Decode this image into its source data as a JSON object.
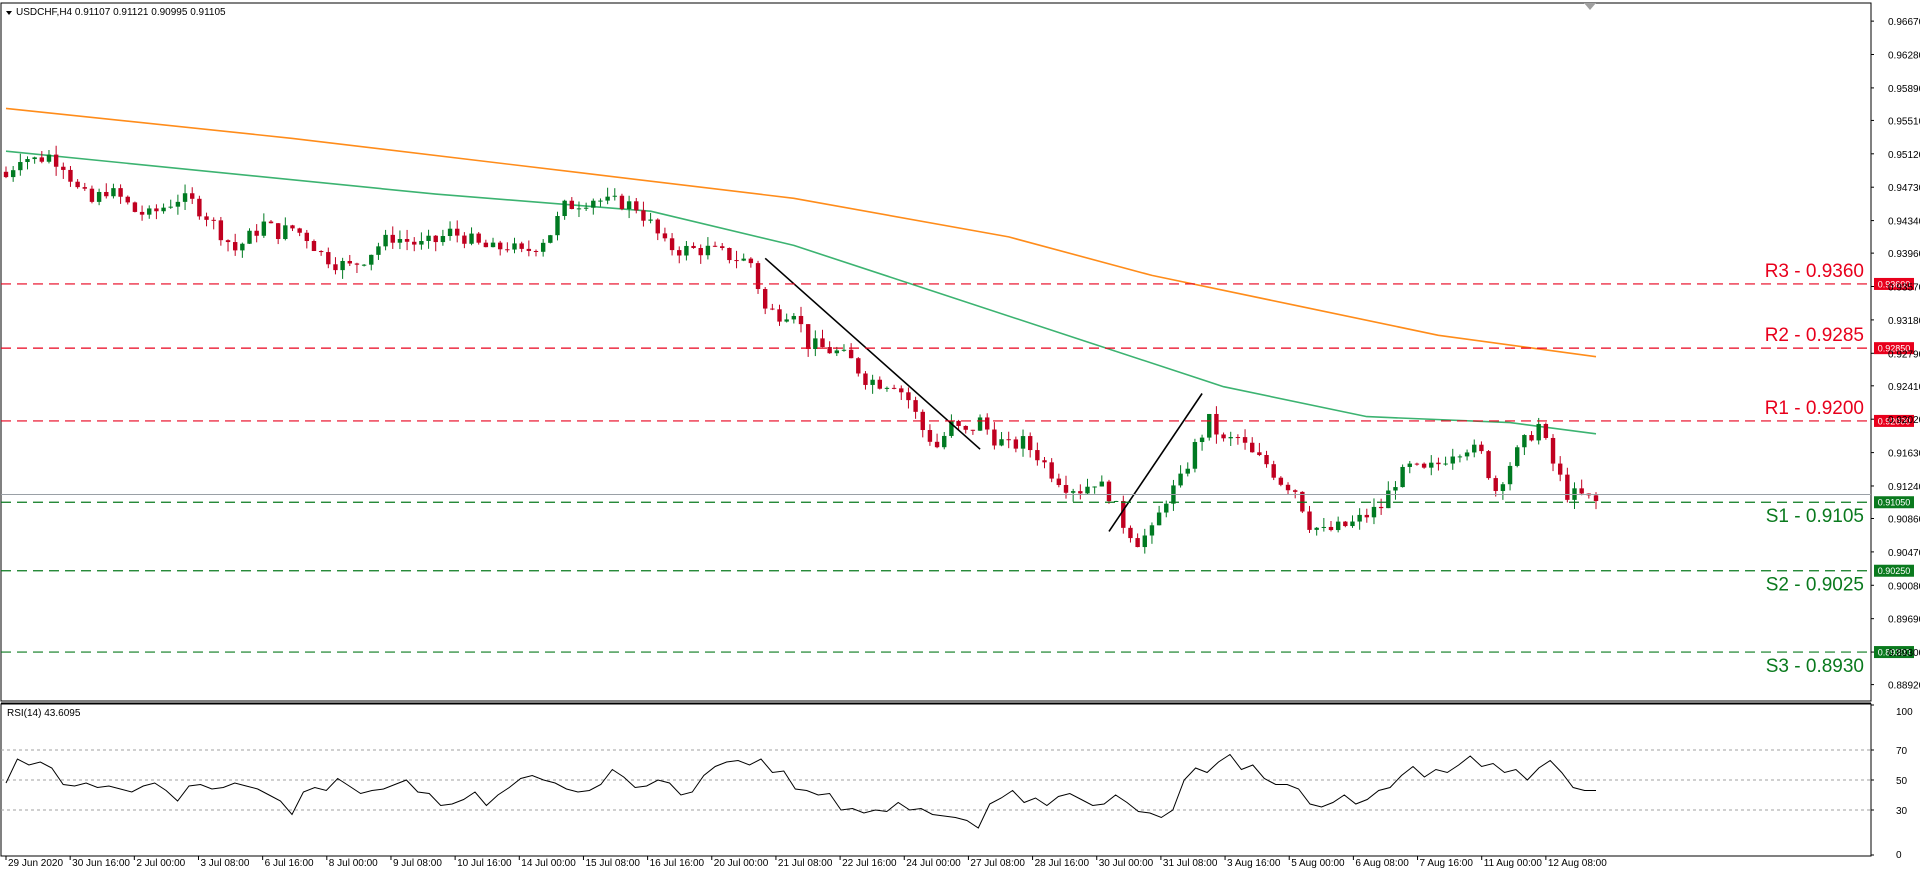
{
  "header": {
    "symbol_info": "USDCHF,H4  0.91107 0.91121 0.90995 0.91105",
    "rsi_info": "RSI(14) 43.6095"
  },
  "colors": {
    "background": "#ffffff",
    "bull_candle": "#007a22",
    "bear_candle": "#c00020",
    "ma_fast": "#3cb371",
    "ma_slow": "#ff8c1a",
    "resistance": "#e8001c",
    "support": "#0a7a1e",
    "trendline": "#000000",
    "rsi_line": "#000000",
    "grid_dash": "#a0a0a0"
  },
  "chart_data": [
    {
      "type": "candlestick",
      "title": "USDCHF,H4",
      "ohlc_readout": {
        "open": 0.91107,
        "high": 0.91121,
        "low": 0.90995,
        "close": 0.91105
      },
      "ylim": [
        0.8874,
        0.9687
      ],
      "y_ticks": [
        "0.96670",
        "0.96280",
        "0.95890",
        "0.95510",
        "0.95120",
        "0.94730",
        "0.94340",
        "0.93960",
        "0.93570",
        "0.93180",
        "0.92790",
        "0.92410",
        "0.92020",
        "0.91630",
        "0.91240",
        "0.90860",
        "0.90470",
        "0.90080",
        "0.89690",
        "0.89300",
        "0.88920"
      ],
      "x_tick_labels": [
        "29 Jun 2020",
        "30 Jun 16:00",
        "2 Jul 00:00",
        "3 Jul 08:00",
        "6 Jul 16:00",
        "8 Jul 00:00",
        "9 Jul 08:00",
        "10 Jul 16:00",
        "14 Jul 00:00",
        "15 Jul 08:00",
        "16 Jul 16:00",
        "20 Jul 00:00",
        "21 Jul 08:00",
        "22 Jul 16:00",
        "24 Jul 00:00",
        "27 Jul 08:00",
        "28 Jul 16:00",
        "30 Jul 00:00",
        "31 Jul 08:00",
        "3 Aug 16:00",
        "5 Aug 00:00",
        "6 Aug 08:00",
        "7 Aug 16:00",
        "11 Aug 00:00",
        "12 Aug 08:00"
      ],
      "levels": [
        {
          "label": "R3 - 0.9360",
          "badge": "0.93600",
          "value": 0.936,
          "kind": "resistance"
        },
        {
          "label": "R2 - 0.9285",
          "badge": "0.92850",
          "value": 0.9285,
          "kind": "resistance"
        },
        {
          "label": "R1 - 0.9200",
          "badge": "0.92000",
          "value": 0.92,
          "kind": "resistance"
        },
        {
          "label": "S1 - 0.9105",
          "badge": "0.91050",
          "value": 0.9105,
          "kind": "support"
        },
        {
          "label": "S2 - 0.9025",
          "badge": "0.90250",
          "value": 0.9025,
          "kind": "support"
        },
        {
          "label": "S3 - 0.8930",
          "badge": "0.89300",
          "value": 0.893,
          "kind": "support"
        }
      ],
      "series": [
        {
          "kind": "candles",
          "close_path": [
            [
              0,
              0.9485
            ],
            [
              2,
              0.951
            ],
            [
              4,
              0.9505
            ],
            [
              6,
              0.951
            ],
            [
              8,
              0.95
            ],
            [
              10,
              0.947
            ],
            [
              12,
              0.9455
            ],
            [
              14,
              0.947
            ],
            [
              16,
              0.946
            ],
            [
              18,
              0.9445
            ],
            [
              20,
              0.944
            ],
            [
              22,
              0.945
            ],
            [
              24,
              0.946
            ],
            [
              26,
              0.9455
            ],
            [
              28,
              0.944
            ],
            [
              30,
              0.942
            ],
            [
              32,
              0.94
            ],
            [
              34,
              0.9415
            ],
            [
              36,
              0.943
            ],
            [
              38,
              0.942
            ],
            [
              40,
              0.9425
            ],
            [
              42,
              0.9415
            ],
            [
              44,
              0.9395
            ],
            [
              46,
              0.9385
            ],
            [
              48,
              0.938
            ],
            [
              50,
              0.939
            ],
            [
              52,
              0.9405
            ],
            [
              54,
              0.9415
            ],
            [
              56,
              0.941
            ],
            [
              58,
              0.9405
            ],
            [
              60,
              0.941
            ],
            [
              62,
              0.942
            ],
            [
              64,
              0.9415
            ],
            [
              66,
              0.9405
            ],
            [
              68,
              0.94
            ],
            [
              70,
              0.9405
            ],
            [
              72,
              0.9395
            ],
            [
              74,
              0.9405
            ],
            [
              76,
              0.942
            ],
            [
              78,
              0.945
            ],
            [
              80,
              0.9455
            ],
            [
              82,
              0.946
            ],
            [
              84,
              0.9455
            ],
            [
              86,
              0.9455
            ],
            [
              88,
              0.945
            ],
            [
              90,
              0.943
            ],
            [
              92,
              0.9405
            ],
            [
              94,
              0.94
            ],
            [
              96,
              0.94
            ],
            [
              98,
              0.94
            ],
            [
              100,
              0.9395
            ],
            [
              102,
              0.939
            ],
            [
              104,
              0.9385
            ],
            [
              106,
              0.933
            ],
            [
              108,
              0.9325
            ],
            [
              110,
              0.933
            ],
            [
              112,
              0.929
            ],
            [
              114,
              0.9285
            ],
            [
              116,
              0.928
            ],
            [
              118,
              0.927
            ],
            [
              120,
              0.925
            ],
            [
              122,
              0.9245
            ],
            [
              124,
              0.9245
            ],
            [
              126,
              0.9225
            ],
            [
              128,
              0.919
            ],
            [
              130,
              0.917
            ],
            [
              132,
              0.9195
            ],
            [
              134,
              0.9185
            ],
            [
              136,
              0.92
            ],
            [
              138,
              0.918
            ],
            [
              140,
              0.917
            ],
            [
              142,
              0.9175
            ],
            [
              144,
              0.916
            ],
            [
              146,
              0.914
            ],
            [
              148,
              0.9125
            ],
            [
              150,
              0.912
            ],
            [
              152,
              0.913
            ],
            [
              154,
              0.9115
            ],
            [
              156,
              0.908
            ],
            [
              158,
              0.906
            ],
            [
              160,
              0.907
            ],
            [
              162,
              0.911
            ],
            [
              164,
              0.913
            ],
            [
              166,
              0.917
            ],
            [
              168,
              0.92
            ],
            [
              170,
              0.9175
            ],
            [
              172,
              0.918
            ],
            [
              174,
              0.916
            ],
            [
              176,
              0.915
            ],
            [
              178,
              0.913
            ],
            [
              180,
              0.912
            ],
            [
              182,
              0.908
            ],
            [
              184,
              0.907
            ],
            [
              186,
              0.9075
            ],
            [
              188,
              0.908
            ],
            [
              190,
              0.909
            ],
            [
              192,
              0.91
            ],
            [
              194,
              0.913
            ],
            [
              196,
              0.9145
            ],
            [
              198,
              0.914
            ],
            [
              200,
              0.915
            ],
            [
              202,
              0.9165
            ],
            [
              204,
              0.917
            ],
            [
              206,
              0.916
            ],
            [
              208,
              0.912
            ],
            [
              210,
              0.915
            ],
            [
              212,
              0.9175
            ],
            [
              214,
              0.9195
            ],
            [
              216,
              0.915
            ],
            [
              218,
              0.9115
            ],
            [
              220,
              0.9112
            ],
            [
              222,
              0.9105
            ]
          ]
        },
        {
          "kind": "line",
          "role": "ma_fast",
          "points": [
            [
              0,
              0.9515
            ],
            [
              60,
              0.9465
            ],
            [
              90,
              0.9445
            ],
            [
              110,
              0.9405
            ],
            [
              130,
              0.935
            ],
            [
              150,
              0.9295
            ],
            [
              170,
              0.924
            ],
            [
              190,
              0.9205
            ],
            [
              210,
              0.9198
            ],
            [
              222,
              0.9185
            ]
          ]
        },
        {
          "kind": "line",
          "role": "ma_slow",
          "points": [
            [
              0,
              0.9565
            ],
            [
              40,
              0.953
            ],
            [
              80,
              0.949
            ],
            [
              110,
              0.946
            ],
            [
              140,
              0.9415
            ],
            [
              160,
              0.937
            ],
            [
              180,
              0.9335
            ],
            [
              200,
              0.93
            ],
            [
              222,
              0.9275
            ]
          ]
        },
        {
          "kind": "trendline",
          "points": [
            [
              106,
              0.939
            ],
            [
              136,
              0.9167
            ]
          ]
        },
        {
          "kind": "trendline",
          "points": [
            [
              154,
              0.9071
            ],
            [
              167,
              0.9232
            ]
          ]
        }
      ]
    },
    {
      "type": "line",
      "title": "RSI(14)",
      "ylim": [
        0,
        100
      ],
      "y_ticks": [
        100,
        70,
        50,
        30,
        0
      ],
      "guide_lines": [
        70,
        50,
        30
      ],
      "series": [
        {
          "name": "RSI(14)",
          "values": [
            48,
            64,
            60,
            62,
            58,
            47,
            46,
            48,
            45,
            46,
            44,
            42,
            46,
            48,
            43,
            36,
            46,
            47,
            44,
            45,
            48,
            46,
            44,
            40,
            36,
            27,
            42,
            45,
            43,
            51,
            46,
            41,
            43,
            44,
            47,
            50,
            42,
            41,
            33,
            34,
            37,
            42,
            33,
            40,
            45,
            51,
            53,
            50,
            48,
            44,
            42,
            43,
            47,
            57,
            52,
            45,
            46,
            50,
            48,
            40,
            42,
            53,
            59,
            62,
            63,
            60,
            64,
            55,
            56,
            44,
            43,
            40,
            41,
            30,
            31,
            28,
            30,
            29,
            35,
            30,
            31,
            27,
            26,
            25,
            23,
            18,
            34,
            38,
            43,
            35,
            38,
            33,
            39,
            41,
            37,
            33,
            34,
            40,
            35,
            29,
            28,
            25,
            30,
            50,
            58,
            55,
            62,
            67,
            57,
            60,
            51,
            47,
            47,
            44,
            34,
            32,
            35,
            40,
            34,
            37,
            43,
            45,
            53,
            59,
            52,
            57,
            55,
            60,
            66,
            59,
            61,
            55,
            57,
            50,
            58,
            63,
            55,
            45,
            43,
            43
          ]
        }
      ]
    }
  ]
}
